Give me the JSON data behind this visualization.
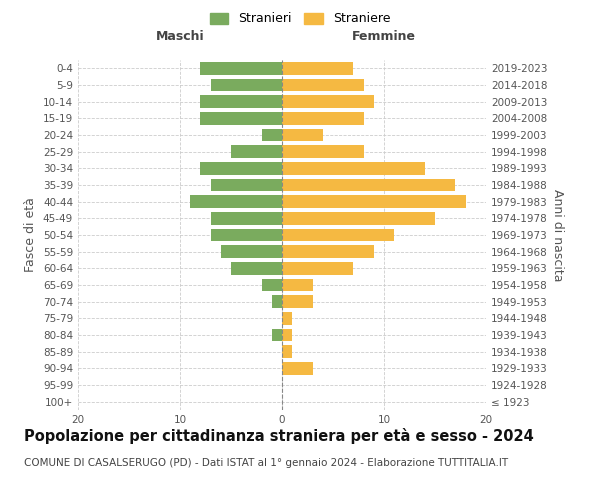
{
  "age_groups": [
    "100+",
    "95-99",
    "90-94",
    "85-89",
    "80-84",
    "75-79",
    "70-74",
    "65-69",
    "60-64",
    "55-59",
    "50-54",
    "45-49",
    "40-44",
    "35-39",
    "30-34",
    "25-29",
    "20-24",
    "15-19",
    "10-14",
    "5-9",
    "0-4"
  ],
  "birth_years": [
    "≤ 1923",
    "1924-1928",
    "1929-1933",
    "1934-1938",
    "1939-1943",
    "1944-1948",
    "1949-1953",
    "1954-1958",
    "1959-1963",
    "1964-1968",
    "1969-1973",
    "1974-1978",
    "1979-1983",
    "1984-1988",
    "1989-1993",
    "1994-1998",
    "1999-2003",
    "2004-2008",
    "2009-2013",
    "2014-2018",
    "2019-2023"
  ],
  "males": [
    0,
    0,
    0,
    0,
    1,
    0,
    1,
    2,
    5,
    6,
    7,
    7,
    9,
    7,
    8,
    5,
    2,
    8,
    8,
    7,
    8
  ],
  "females": [
    0,
    0,
    3,
    1,
    1,
    1,
    3,
    3,
    7,
    9,
    11,
    15,
    18,
    17,
    14,
    8,
    4,
    8,
    9,
    8,
    7
  ],
  "male_color": "#7aab5e",
  "female_color": "#f5b942",
  "background_color": "#ffffff",
  "grid_color": "#cccccc",
  "title": "Popolazione per cittadinanza straniera per età e sesso - 2024",
  "subtitle": "COMUNE DI CASALSERUGO (PD) - Dati ISTAT al 1° gennaio 2024 - Elaborazione TUTTITALIA.IT",
  "xlabel_left": "Maschi",
  "xlabel_right": "Femmine",
  "ylabel_left": "Fasce di età",
  "ylabel_right": "Anni di nascita",
  "legend_male": "Stranieri",
  "legend_female": "Straniere",
  "xlim": 20,
  "title_fontsize": 10.5,
  "subtitle_fontsize": 7.5,
  "tick_fontsize": 7.5,
  "label_fontsize": 9
}
